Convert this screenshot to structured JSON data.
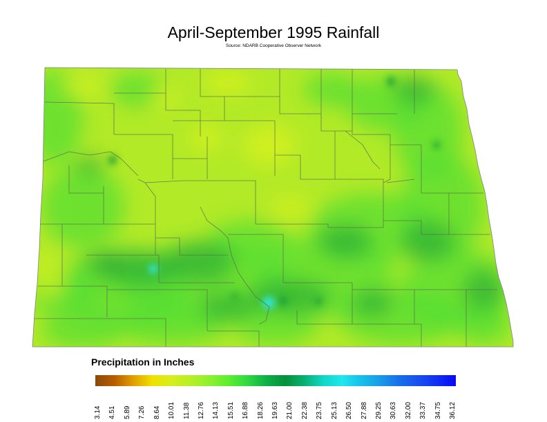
{
  "title": "April-September 1995 Rainfall",
  "subtitle": "Source: NDARB Cooperative Observer Network",
  "legend": {
    "title": "Precipitation in Inches",
    "ticks": [
      "3.14",
      "4.51",
      "5.89",
      "7.26",
      "8.64",
      "10.01",
      "11.38",
      "12.76",
      "14.13",
      "15.51",
      "16.88",
      "18.26",
      "19.63",
      "21.00",
      "22.38",
      "23.75",
      "25.13",
      "26.50",
      "27.88",
      "29.25",
      "30.63",
      "32.00",
      "33.37",
      "34.75",
      "36.12"
    ],
    "colors": [
      "#8a4a0a",
      "#b85c00",
      "#e0a000",
      "#f0e000",
      "#d6ee1e",
      "#b8ef28",
      "#8ef030",
      "#5fee30",
      "#32d840",
      "#0fb048",
      "#06903a",
      "#08b070",
      "#11d6c6",
      "#20e6ee",
      "#16c0ea",
      "#1a9ae8",
      "#1670ea",
      "#1850ee",
      "#1230f2",
      "#0808f4"
    ]
  },
  "map_colors": {
    "yellow": "#dcf21e",
    "yellow_green": "#b2ea28",
    "green": "#55dd33",
    "dark_green": "#1e9e36",
    "cyan": "#2ee8e8",
    "county_line": "#5a6a4a"
  }
}
